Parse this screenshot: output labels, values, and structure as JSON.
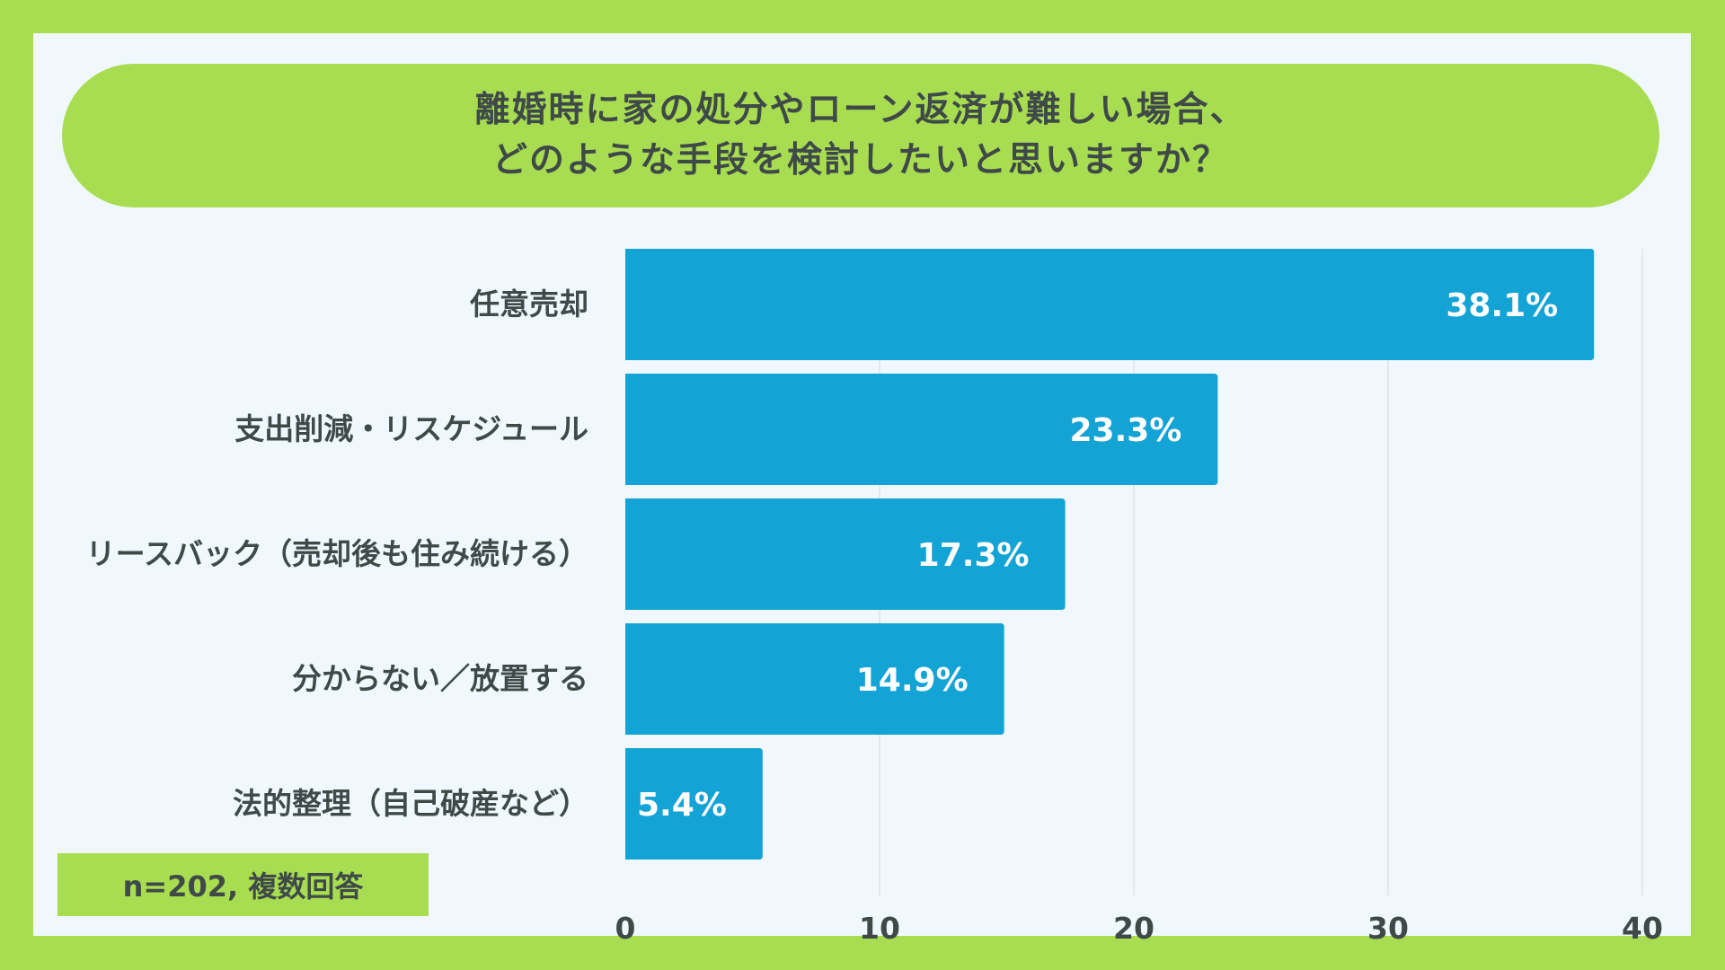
{
  "title": {
    "line1": "離婚時に家の処分やローン返済が難しい場合、",
    "line2": "どのような手段を検討したいと思いますか？"
  },
  "note": "n=202, 複数回答",
  "colors": {
    "background": "#a8dd52",
    "panel": "#f1f8fd",
    "bar": "#13a3d5",
    "text": "#3f4a48",
    "grid": "#dde3e8"
  },
  "chart_data": {
    "type": "bar",
    "orientation": "horizontal",
    "categories": [
      "任意売却",
      "支出削減・リスケジュール",
      "リースバック（売却後も住み続ける）",
      "分からない／放置する",
      "法的整理（自己破産など）"
    ],
    "values": [
      38.1,
      23.3,
      17.3,
      14.9,
      5.4
    ],
    "value_labels": [
      "38.1%",
      "23.3%",
      "17.3%",
      "14.9%",
      "5.4%"
    ],
    "xlim": [
      0,
      40
    ],
    "xticks": [
      0,
      10,
      20,
      30,
      40
    ],
    "grid": true,
    "title": "離婚時に家の処分やローン返済が難しい場合、どのような手段を検討したいと思いますか？",
    "xlabel": "",
    "ylabel": ""
  }
}
